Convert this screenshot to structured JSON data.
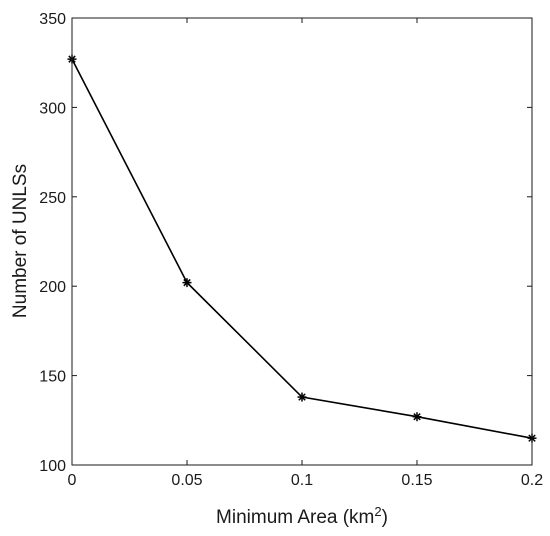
{
  "chart_data": {
    "type": "line",
    "title": "",
    "xlabel": "Minimum Area (km",
    "xlabel_sup": "2",
    "xlabel_suffix": ")",
    "ylabel": "Number of  UNLSs",
    "x": [
      0,
      0.05,
      0.1,
      0.15,
      0.2
    ],
    "series": [
      {
        "values": [
          327,
          202,
          138,
          127,
          115
        ],
        "color": "#000000",
        "marker": "asterisk"
      }
    ],
    "xlim": [
      0,
      0.2
    ],
    "ylim": [
      100,
      350
    ],
    "xticks": [
      0,
      0.05,
      0.1,
      0.15,
      0.2
    ],
    "xtick_labels": [
      "0",
      "0.05",
      "0.1",
      "0.15",
      "0.2"
    ],
    "yticks": [
      100,
      150,
      200,
      250,
      300,
      350
    ],
    "ytick_labels": [
      "100",
      "150",
      "200",
      "250",
      "300",
      "350"
    ],
    "grid": false,
    "legend": "none"
  }
}
